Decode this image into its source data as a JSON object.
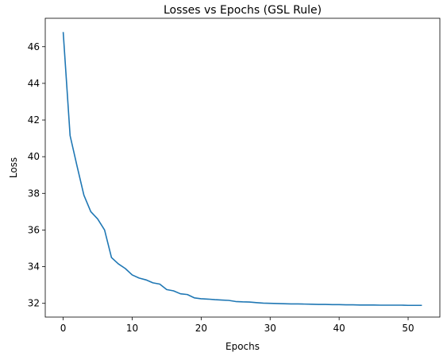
{
  "chart_data": {
    "type": "line",
    "title": "Losses vs Epochs (GSL Rule)",
    "xlabel": "Epochs",
    "ylabel": "Loss",
    "xlim": [
      -2.6,
      54.6
    ],
    "ylim": [
      31.25,
      47.55
    ],
    "xticks": [
      0,
      10,
      20,
      30,
      40,
      50
    ],
    "yticks": [
      32,
      34,
      36,
      38,
      40,
      42,
      44,
      46
    ],
    "grid": false,
    "legend": "none",
    "series": [
      {
        "color": "#1f77b4",
        "x": [
          0,
          1,
          2,
          3,
          4,
          5,
          6,
          7,
          8,
          9,
          10,
          11,
          12,
          13,
          14,
          15,
          16,
          17,
          18,
          19,
          20,
          21,
          22,
          23,
          24,
          25,
          26,
          27,
          28,
          29,
          30,
          31,
          32,
          33,
          34,
          35,
          36,
          37,
          38,
          39,
          40,
          41,
          42,
          43,
          44,
          45,
          46,
          47,
          48,
          49,
          50,
          51,
          52
        ],
        "y": [
          46.8,
          41.15,
          39.5,
          37.9,
          37.0,
          36.6,
          36.0,
          34.5,
          34.15,
          33.9,
          33.55,
          33.38,
          33.28,
          33.12,
          33.05,
          32.75,
          32.68,
          32.52,
          32.48,
          32.3,
          32.25,
          32.23,
          32.2,
          32.18,
          32.16,
          32.1,
          32.08,
          32.07,
          32.04,
          32.01,
          32.0,
          31.99,
          31.98,
          31.97,
          31.97,
          31.96,
          31.95,
          31.94,
          31.94,
          31.93,
          31.93,
          31.92,
          31.92,
          31.91,
          31.91,
          31.91,
          31.9,
          31.9,
          31.9,
          31.9,
          31.89,
          31.89,
          31.89
        ]
      }
    ]
  }
}
